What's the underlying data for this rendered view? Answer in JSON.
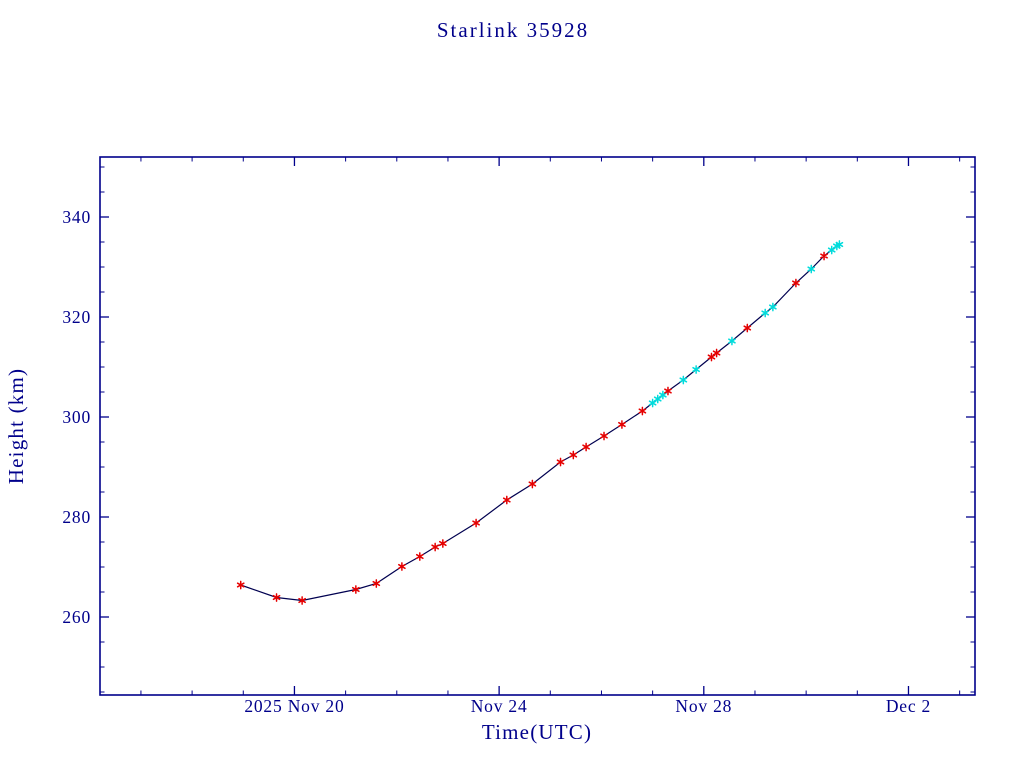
{
  "page": {
    "background": "#ffffff"
  },
  "chart_data": {
    "type": "line",
    "title": "Starlink 35928",
    "xlabel": "Time(UTC)",
    "ylabel": "Height (km)",
    "x_unit": "day of November 2025 (32 = Dec 2)",
    "xlim": [
      16.2,
      33.3
    ],
    "ylim": [
      244.4,
      352
    ],
    "grid": false,
    "legend": "none",
    "axis_color": "#00008B",
    "line_color": "#000050",
    "marker_colors": {
      "red": "#e60000",
      "cyan": "#00dcdc"
    },
    "x_major_ticks": [
      {
        "value": 20,
        "label": "2025 Nov 20"
      },
      {
        "value": 24,
        "label": "Nov 24"
      },
      {
        "value": 28,
        "label": "Nov 28"
      },
      {
        "value": 32,
        "label": "Dec 2"
      }
    ],
    "x_minor_tick_step": 1,
    "y_major_ticks": [
      {
        "value": 260,
        "label": "260"
      },
      {
        "value": 280,
        "label": "280"
      },
      {
        "value": 300,
        "label": "300"
      },
      {
        "value": 320,
        "label": "320"
      },
      {
        "value": 340,
        "label": "340"
      }
    ],
    "y_minor_tick_step": 5,
    "point_format": [
      "day_of_nov_2025",
      "height_km",
      "marker_color"
    ],
    "points": [
      [
        18.95,
        266.4,
        "red"
      ],
      [
        19.65,
        263.9,
        "red"
      ],
      [
        20.15,
        263.3,
        "red"
      ],
      [
        21.2,
        265.5,
        "red"
      ],
      [
        21.6,
        266.7,
        "red"
      ],
      [
        22.1,
        270.1,
        "red"
      ],
      [
        22.45,
        272.1,
        "red"
      ],
      [
        22.75,
        274.0,
        "red"
      ],
      [
        22.9,
        274.7,
        "red"
      ],
      [
        23.55,
        278.8,
        "red"
      ],
      [
        24.15,
        283.4,
        "red"
      ],
      [
        24.65,
        286.6,
        "red"
      ],
      [
        25.2,
        291.0,
        "red"
      ],
      [
        25.45,
        292.4,
        "red"
      ],
      [
        25.7,
        294.0,
        "red"
      ],
      [
        26.05,
        296.2,
        "red"
      ],
      [
        26.4,
        298.5,
        "red"
      ],
      [
        26.8,
        301.2,
        "red"
      ],
      [
        27.0,
        302.8,
        "cyan"
      ],
      [
        27.1,
        303.6,
        "cyan"
      ],
      [
        27.2,
        304.4,
        "cyan"
      ],
      [
        27.3,
        305.2,
        "red"
      ],
      [
        27.6,
        307.4,
        "cyan"
      ],
      [
        27.85,
        309.5,
        "cyan"
      ],
      [
        28.15,
        312.0,
        "red"
      ],
      [
        28.25,
        312.8,
        "red"
      ],
      [
        28.55,
        315.2,
        "cyan"
      ],
      [
        28.85,
        317.8,
        "red"
      ],
      [
        29.2,
        320.8,
        "cyan"
      ],
      [
        29.35,
        322.0,
        "cyan"
      ],
      [
        29.8,
        326.8,
        "red"
      ],
      [
        30.1,
        329.6,
        "cyan"
      ],
      [
        30.35,
        332.2,
        "red"
      ],
      [
        30.5,
        333.4,
        "cyan"
      ],
      [
        30.6,
        334.2,
        "cyan"
      ],
      [
        30.65,
        334.5,
        "cyan"
      ]
    ]
  }
}
